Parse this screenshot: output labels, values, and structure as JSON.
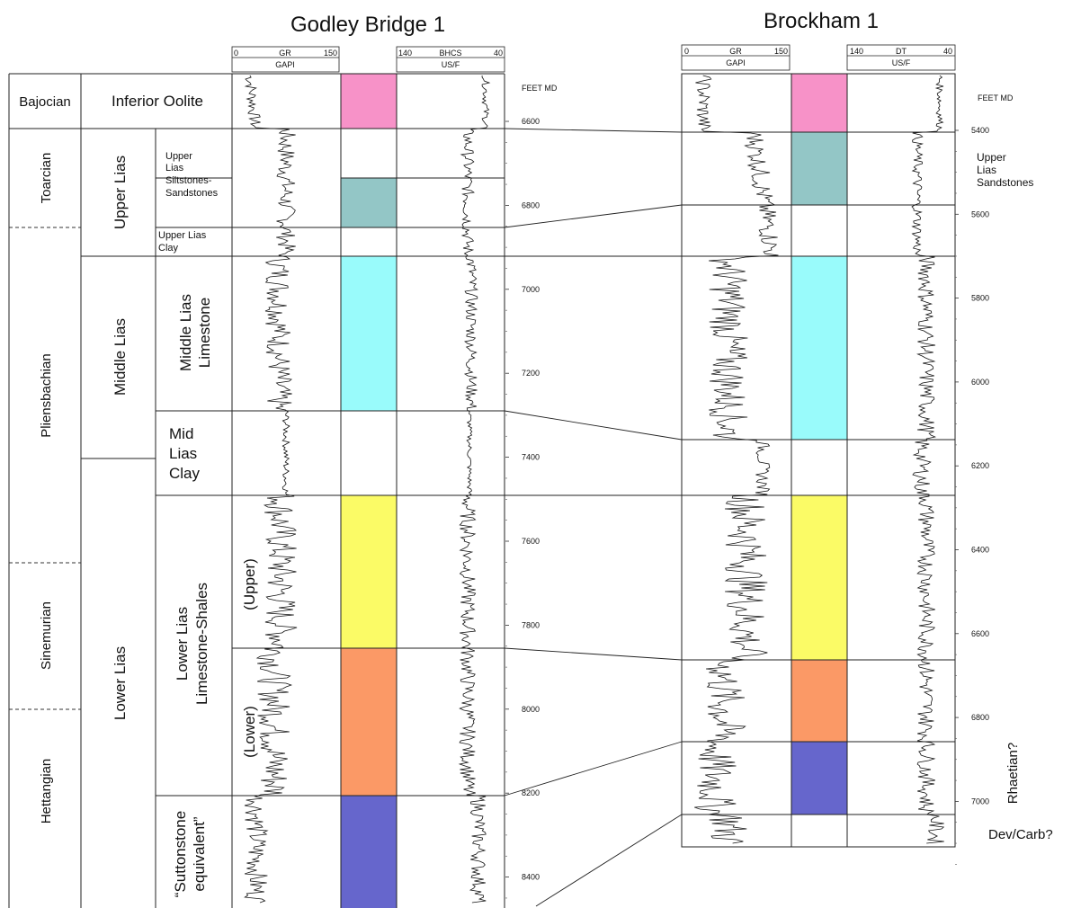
{
  "wells": [
    {
      "title": "Godley Bridge 1",
      "gr_header": {
        "min": "0",
        "name": "GR",
        "max": "150",
        "unit": "GAPI"
      },
      "sonic_header": {
        "min": "140",
        "name": "BHCS",
        "max": "40",
        "unit": "US/F"
      },
      "depth_unit": "FEET MD",
      "depth_labels": [
        "6600",
        "6800",
        "7000",
        "7200",
        "7400",
        "7600",
        "7800",
        "8000",
        "8200",
        "8400"
      ],
      "zone_tops_ft": [
        6470,
        6600,
        6730,
        6855,
        6925,
        7300,
        7500,
        7865,
        8215,
        8505
      ],
      "color_zones": [
        {
          "name": "inferior-oolite",
          "color": "#f792c8",
          "top": 6470,
          "base": 6600
        },
        {
          "name": "upper-lias-sandstones",
          "color": "#93c6c6",
          "top": 6730,
          "base": 6855
        },
        {
          "name": "middle-lias-limestone",
          "color": "#99fbfb",
          "top": 6925,
          "base": 7300
        },
        {
          "name": "lower-lias-upper",
          "color": "#fbfb66",
          "top": 7500,
          "base": 7865
        },
        {
          "name": "lower-lias-lower",
          "color": "#fb9966",
          "top": 7865,
          "base": 8215
        },
        {
          "name": "suttonstone-equivalent",
          "color": "#6666cc",
          "top": 8215,
          "base": 8505
        }
      ]
    },
    {
      "title": "Brockham 1",
      "gr_header": {
        "min": "0",
        "name": "GR",
        "max": "150",
        "unit": "GAPI"
      },
      "sonic_header": {
        "min": "140",
        "name": "DT",
        "max": "40",
        "unit": "US/F"
      },
      "depth_unit": "FEET MD",
      "depth_labels": [
        "5400",
        "5600",
        "5800",
        "6000",
        "6200",
        "6400",
        "6600",
        "6800",
        "7000"
      ],
      "zone_tops_ft": [
        5270,
        5400,
        5575,
        5700,
        6140,
        6270,
        6660,
        6860,
        7040,
        7130
      ],
      "color_zones": [
        {
          "name": "inferior-oolite",
          "color": "#f792c8",
          "top": 5270,
          "base": 5400
        },
        {
          "name": "upper-lias-sandstones",
          "color": "#93c6c6",
          "top": 5400,
          "base": 5575
        },
        {
          "name": "middle-lias-limestone",
          "color": "#99fbfb",
          "top": 5700,
          "base": 6140
        },
        {
          "name": "lower-lias-upper",
          "color": "#fbfb66",
          "top": 6270,
          "base": 6660
        },
        {
          "name": "lower-lias-lower",
          "color": "#fb9966",
          "top": 6660,
          "base": 6860
        },
        {
          "name": "rhaetian",
          "color": "#6666cc",
          "top": 6860,
          "base": 7040
        }
      ]
    }
  ],
  "stages": [
    "Bajocian",
    "Toarcian",
    "Pliensbachian",
    "Sinemurian",
    "Hettangian"
  ],
  "groups": [
    "Inferior Oolite",
    "Upper Lias",
    "Middle Lias",
    "Lower Lias"
  ],
  "formations": {
    "upper_lias_siltstones": [
      "Upper",
      "Lias",
      "Siltstones-",
      "Sandstones"
    ],
    "upper_lias_clay": [
      "Upper Lias",
      "Clay"
    ],
    "middle_lias_limestone": [
      "Middle Lias",
      "Limestone"
    ],
    "mid_lias_clay": [
      "Mid",
      "Lias",
      "Clay"
    ],
    "lower_lias": [
      "Lower Lias",
      "Limestone-Shales"
    ],
    "lower_lias_upper": "(Upper)",
    "lower_lias_lower": "(Lower)",
    "suttonstone": [
      "“Suttonstone",
      "equivalent”"
    ]
  },
  "right_labels": {
    "upper_lias_sandstones": [
      "Upper",
      "Lias",
      "Sandstones"
    ],
    "rhaetian": "Rhaetian?",
    "dev_carb": "Dev/Carb?"
  },
  "colors": {
    "pink": "#f792c8",
    "teal": "#93c6c6",
    "cyan": "#99fbfb",
    "yellow": "#fbfb66",
    "orange": "#fb9966",
    "blue": "#6666cc"
  }
}
